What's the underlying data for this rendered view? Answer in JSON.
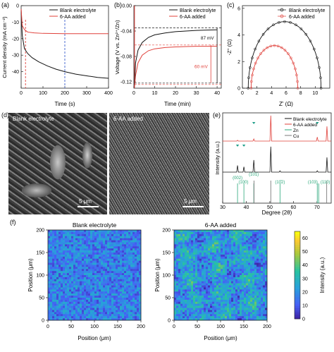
{
  "colors": {
    "blank": "#111111",
    "additive": "#e0403a",
    "blue_marker": "#3a5fcd",
    "green_marker": "#1f9e89",
    "zn_ref": "#2aa87a",
    "cu_ref": "#7a7a7a"
  },
  "panel_labels": [
    "(a)",
    "(b)",
    "(c)",
    "(d)",
    "(e)",
    "(f)"
  ],
  "chart_data": [
    {
      "panel": "(a)",
      "type": "line",
      "xlabel": "Time (s)",
      "ylabel": "Current density (mA cm⁻²)",
      "xlim": [
        0,
        400
      ],
      "ylim": [
        -50,
        0
      ],
      "xticks": [
        0,
        100,
        200,
        300,
        400
      ],
      "yticks": [
        0,
        -10,
        -20,
        -30,
        -40
      ],
      "legend": {
        "placement": "top-right",
        "entries": [
          "Blank electrolyte",
          "6-AA added"
        ]
      },
      "series": [
        {
          "name": "Blank electrolyte",
          "x": [
            0,
            5,
            15,
            30,
            50,
            80,
            120,
            160,
            200,
            250,
            300,
            350,
            400
          ],
          "y": [
            -2,
            -18,
            -26,
            -29,
            -31.5,
            -34,
            -36.5,
            -38.5,
            -40,
            -41.5,
            -42.5,
            -43.5,
            -44
          ]
        },
        {
          "name": "6-AA added",
          "x": [
            0,
            5,
            15,
            30,
            60,
            100,
            200,
            300,
            400
          ],
          "y": [
            -2,
            -12,
            -14.5,
            -16,
            -16.5,
            -16.8,
            -17,
            -17,
            -17
          ]
        }
      ],
      "markers": [
        {
          "x": 20,
          "color": "additive"
        },
        {
          "x": 200,
          "color": "blue_marker"
        }
      ]
    },
    {
      "panel": "(b)",
      "type": "line",
      "xlabel": "Time (min)",
      "ylabel": "Voltage (V vs. Zn²⁺/Zn)",
      "xlim": [
        0,
        42
      ],
      "ylim": [
        -0.13,
        0
      ],
      "xticks": [
        0,
        10,
        20,
        30,
        40
      ],
      "yticks": [
        0,
        -0.04,
        -0.08,
        -0.12
      ],
      "legend": {
        "placement": "top-right",
        "entries": [
          "Blank electrolyte",
          "6-AA added"
        ]
      },
      "series": [
        {
          "name": "Blank electrolyte",
          "x": [
            0.3,
            0.8,
            2,
            4,
            7,
            10,
            15,
            20,
            25,
            30,
            35,
            40
          ],
          "y": [
            -0.125,
            -0.09,
            -0.07,
            -0.058,
            -0.05,
            -0.046,
            -0.043,
            -0.041,
            -0.04,
            -0.039,
            -0.0385,
            -0.038
          ]
        },
        {
          "name": "6-AA added",
          "x": [
            0.3,
            0.8,
            2,
            4,
            7,
            10,
            15,
            20,
            25,
            30,
            35,
            40
          ],
          "y": [
            -0.128,
            -0.11,
            -0.09,
            -0.078,
            -0.071,
            -0.068,
            -0.066,
            -0.065,
            -0.0645,
            -0.064,
            -0.064,
            -0.064
          ]
        }
      ],
      "annotations": [
        {
          "text": "87 mV",
          "from": -0.035,
          "to": -0.122
        },
        {
          "text": "60 mV",
          "from": -0.062,
          "to": -0.122
        }
      ]
    },
    {
      "panel": "(c)",
      "type": "scatter",
      "xlabel": "Z' (Ω)",
      "ylabel": "-Z'' (Ω)",
      "xlim": [
        0,
        12
      ],
      "ylim": [
        0,
        6.2
      ],
      "xticks": [
        0,
        2,
        4,
        6,
        8,
        10
      ],
      "yticks": [
        0,
        2,
        4,
        6
      ],
      "legend": {
        "placement": "top-right",
        "entries": [
          "Blank electrolyte",
          "6-AA added"
        ]
      },
      "series": [
        {
          "name": "Blank electrolyte",
          "semicircle": {
            "start": 0.8,
            "end": 10.8
          }
        },
        {
          "name": "6-AA added",
          "semicircle": {
            "start": 1.2,
            "end": 7.6
          }
        }
      ]
    },
    {
      "panel": "(e)",
      "type": "line",
      "xlabel": "Degree (2θ)",
      "ylabel": "Intensity (a.u.)",
      "xlim": [
        30,
        76
      ],
      "xticks": [
        30,
        40,
        50,
        60,
        70
      ],
      "legend": {
        "placement": "top-right",
        "entries": [
          "Blank electrolyte",
          "6-AA added",
          "Zn",
          "Cu"
        ]
      },
      "series": [
        {
          "name": "Blank electrolyte",
          "peaks": [
            [
              36.3,
              0.25
            ],
            [
              39.0,
              0.2
            ],
            [
              43.2,
              0.45
            ],
            [
              50.4,
              0.95
            ],
            [
              54.3,
              0.05
            ],
            [
              70.1,
              0.05
            ],
            [
              74.2,
              0.55
            ]
          ]
        },
        {
          "name": "6-AA added",
          "peaks": [
            [
              36.3,
              0.03
            ],
            [
              43.2,
              0.08
            ],
            [
              50.4,
              0.95
            ],
            [
              70.1,
              0.15
            ],
            [
              74.2,
              0.55
            ]
          ]
        }
      ],
      "reference": {
        "zn": [
          36.3,
          39.0,
          43.2,
          54.3,
          70.1,
          70.7
        ],
        "cu": [
          43.3,
          50.4,
          74.1
        ],
        "labels": [
          "(002)",
          "(100)",
          "(101)",
          "(10̄2)",
          "(103)",
          "(110)"
        ]
      },
      "triangles": [
        36.3,
        39.0,
        43.2,
        70.1
      ]
    },
    {
      "panel": "(f)",
      "type": "heatmap",
      "titles": [
        "Blank electrolyte",
        "6-AA added"
      ],
      "xlabel": "Position (μm)",
      "ylabel": "Position (μm)",
      "xlim": [
        0,
        200
      ],
      "ylim": [
        0,
        200
      ],
      "ticks": [
        0,
        50,
        100,
        150,
        200
      ],
      "colorbar": {
        "label": "Intensity (a.u.)",
        "range": [
          0,
          65
        ],
        "ticks": [
          0,
          10,
          20,
          30,
          40,
          50,
          60
        ]
      }
    }
  ],
  "panel_d": {
    "labels": [
      "Blank electrolyte",
      "6-AA added"
    ],
    "scalebar": "5 μm"
  }
}
